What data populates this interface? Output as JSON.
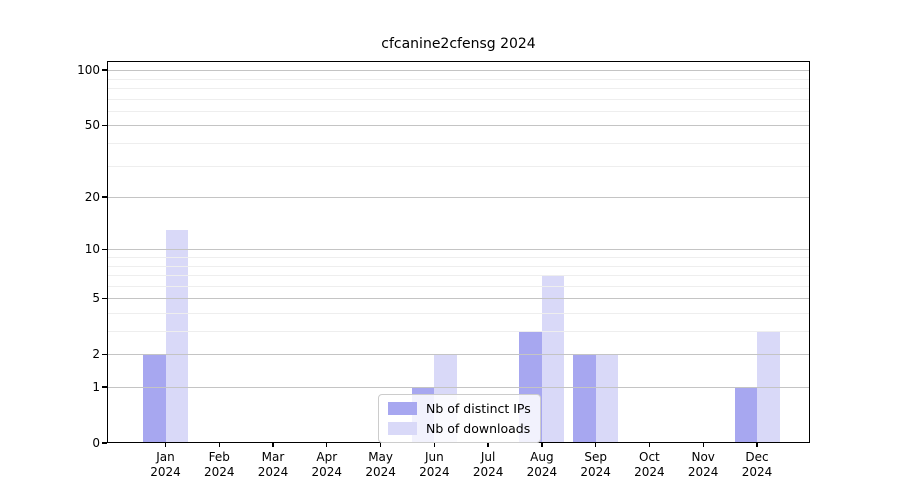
{
  "title": "cfcanine2cfensg 2024",
  "chart_data": {
    "type": "bar",
    "title": "cfcanine2cfensg 2024",
    "categories": [
      "Jan 2024",
      "Feb 2024",
      "Mar 2024",
      "Apr 2024",
      "May 2024",
      "Jun 2024",
      "Jul 2024",
      "Aug 2024",
      "Sep 2024",
      "Oct 2024",
      "Nov 2024",
      "Dec 2024"
    ],
    "series": [
      {
        "name": "Nb of distinct IPs",
        "color": "#a7a7f0",
        "values": [
          2,
          0,
          0,
          0,
          0,
          1,
          0,
          3,
          2,
          0,
          0,
          1
        ]
      },
      {
        "name": "Nb of downloads",
        "color": "#d9d9f8",
        "values": [
          13,
          0,
          0,
          0,
          0,
          2,
          0,
          7,
          2,
          0,
          0,
          3
        ]
      }
    ],
    "yscale": "log1p",
    "yticks": [
      0,
      1,
      2,
      5,
      10,
      20,
      50,
      100
    ],
    "minor_yticks": [
      3,
      4,
      6,
      7,
      8,
      9,
      30,
      40,
      60,
      70,
      80,
      90
    ],
    "ylim": [
      0,
      112
    ],
    "xlabel": "",
    "ylabel": "",
    "grid": true,
    "legend": {
      "position": "lower center"
    }
  },
  "colors": {
    "bar_distinct_ips": "#a7a7f0",
    "bar_downloads": "#d9d9f8",
    "major_grid": "#c4c4c4",
    "minor_grid": "#eeeeee",
    "spine": "#000000",
    "background": "#ffffff"
  }
}
